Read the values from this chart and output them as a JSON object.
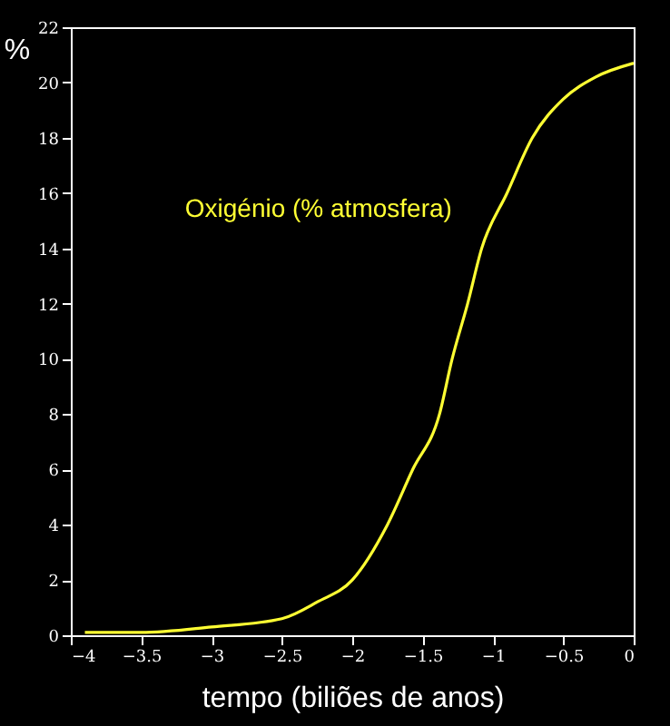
{
  "chart_data": {
    "type": "line",
    "xlabel": "tempo (biliões de anos)",
    "ylabel": "%",
    "annotations": [
      "Oxigénio  (% atmosfera)"
    ],
    "x": [
      -3.9,
      -3.5,
      -3,
      -2.5,
      -2.25,
      -2,
      -1.75,
      -1.57,
      -1.38,
      -1.29,
      -1.18,
      -1.08,
      -0.9,
      -0.72,
      -0.5,
      -0.27,
      0
    ],
    "series": [
      {
        "color": "#ffff33",
        "values": [
          0.1,
          0.1,
          0.3,
          0.6,
          1.2,
          2,
          4,
          6,
          8,
          10,
          12,
          14,
          16,
          18,
          19.4,
          20.2,
          20.7
        ]
      }
    ],
    "xlim": [
      -4,
      0
    ],
    "xticks": [
      -4,
      -3.5,
      -3,
      -2.5,
      -2,
      -1.5,
      -1,
      -0.5,
      0
    ],
    "ylim": [
      0,
      22
    ],
    "yticks": [
      0,
      2,
      4,
      6,
      8,
      10,
      12,
      14,
      16,
      18,
      20,
      22
    ],
    "grid": false,
    "marker": "none",
    "line_style": "solid"
  }
}
